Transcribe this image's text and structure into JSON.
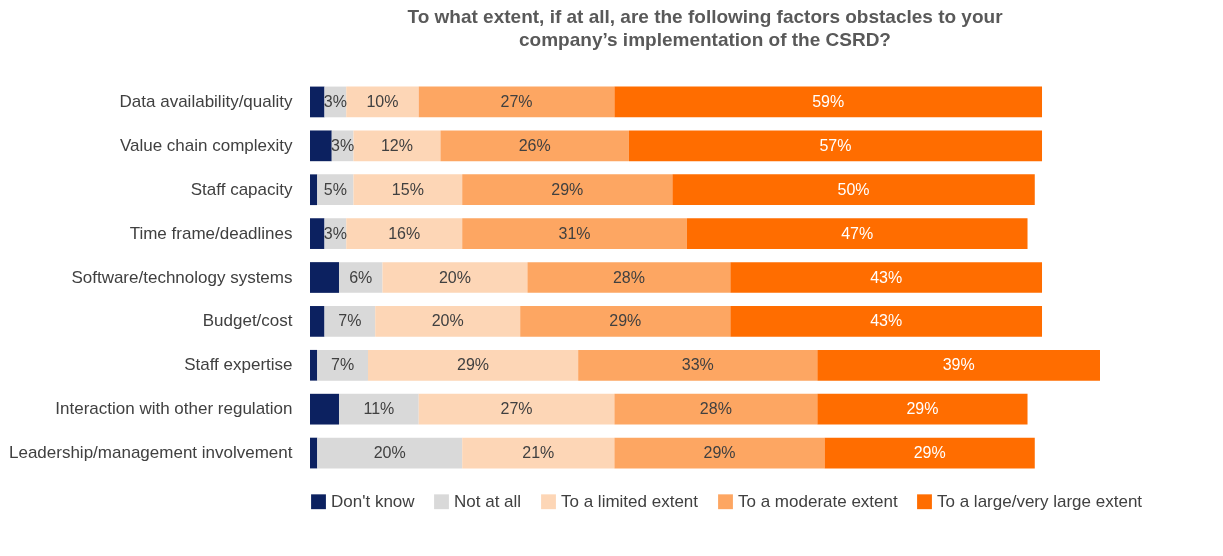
{
  "chart_data": {
    "type": "bar",
    "orientation": "horizontal",
    "stacked": true,
    "title": "To what extent, if at all, are the following factors obstacles to your\ncompany’s implementation of the CSRD?",
    "legend": "bottom",
    "categories": [
      "Data availability/quality",
      "Value chain complexity",
      "Staff capacity",
      "Time frame/deadlines",
      "Software/technology systems",
      "Budget/cost",
      "Staff expertise",
      "Interaction with other regulation",
      "Leadership/management involvement"
    ],
    "series": [
      {
        "name": "Don't know",
        "color": "#0c2160",
        "values": [
          2,
          3,
          1,
          2,
          4,
          2,
          1,
          4,
          1
        ]
      },
      {
        "name": "Not at all",
        "color": "#d9d9d9",
        "values": [
          3,
          3,
          5,
          3,
          6,
          7,
          7,
          11,
          20
        ],
        "value_labels": [
          "3%",
          "3%",
          "5%",
          "3%",
          "6%",
          "7%",
          "7%",
          "11%",
          "20%"
        ]
      },
      {
        "name": "To a limited extent",
        "color": "#fdd6b6",
        "values": [
          10,
          12,
          15,
          16,
          20,
          20,
          29,
          27,
          21
        ],
        "value_labels": [
          "10%",
          "12%",
          "15%",
          "16%",
          "20%",
          "20%",
          "29%",
          "27%",
          "21%"
        ]
      },
      {
        "name": "To a moderate extent",
        "color": "#fda662",
        "values": [
          27,
          26,
          29,
          31,
          28,
          29,
          33,
          28,
          29
        ],
        "value_labels": [
          "27%",
          "26%",
          "29%",
          "31%",
          "28%",
          "29%",
          "33%",
          "28%",
          "29%"
        ]
      },
      {
        "name": "To a large/very large extent",
        "color": "#ff6d00",
        "values": [
          59,
          57,
          50,
          47,
          43,
          43,
          39,
          29,
          29
        ],
        "value_labels": [
          "59%",
          "57%",
          "50%",
          "47%",
          "43%",
          "43%",
          "39%",
          "29%",
          "29%"
        ]
      }
    ]
  }
}
